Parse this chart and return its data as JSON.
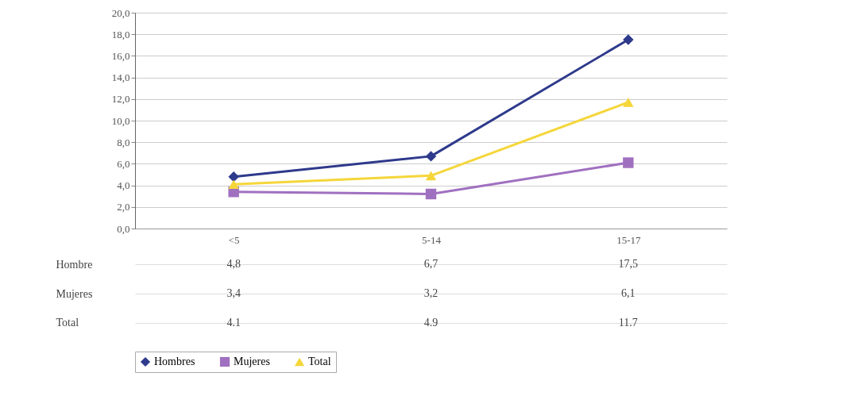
{
  "chart_data": {
    "type": "line",
    "categories": [
      "<5",
      "5-14",
      "15-17"
    ],
    "series": [
      {
        "name": "Hombres",
        "color": "#2e3a8c",
        "marker": "diamond",
        "values": [
          4.8,
          6.7,
          17.5
        ],
        "value_labels": [
          "4,8",
          "6,7",
          "17,5"
        ]
      },
      {
        "name": "Mujeres",
        "color": "#a070c0",
        "marker": "square",
        "values": [
          3.4,
          3.2,
          6.1
        ],
        "value_labels": [
          "3,4",
          "3,2",
          "6,1"
        ]
      },
      {
        "name": "Total",
        "color": "#f5d63a",
        "marker": "triangle",
        "values": [
          4.1,
          4.9,
          11.7
        ],
        "value_labels": [
          "4.1",
          "4.9",
          "11.7"
        ]
      }
    ],
    "annotations": [
      "Hombre",
      "Mujeres",
      "Total"
    ],
    "ylim": [
      0,
      20
    ],
    "yticks": [
      {
        "value": 0,
        "label": "0,0"
      },
      {
        "value": 2,
        "label": "2,0"
      },
      {
        "value": 4,
        "label": "4,0"
      },
      {
        "value": 6,
        "label": "6,0"
      },
      {
        "value": 8,
        "label": "8,0"
      },
      {
        "value": 10,
        "label": "10,0"
      },
      {
        "value": 12,
        "label": "12,0"
      },
      {
        "value": 14,
        "label": "14,0"
      },
      {
        "value": 16,
        "label": "16,0"
      },
      {
        "value": 18,
        "label": "18,0"
      },
      {
        "value": 20,
        "label": "20,0"
      }
    ],
    "grid": "y",
    "legend": "bottom",
    "line_style": "solid"
  }
}
